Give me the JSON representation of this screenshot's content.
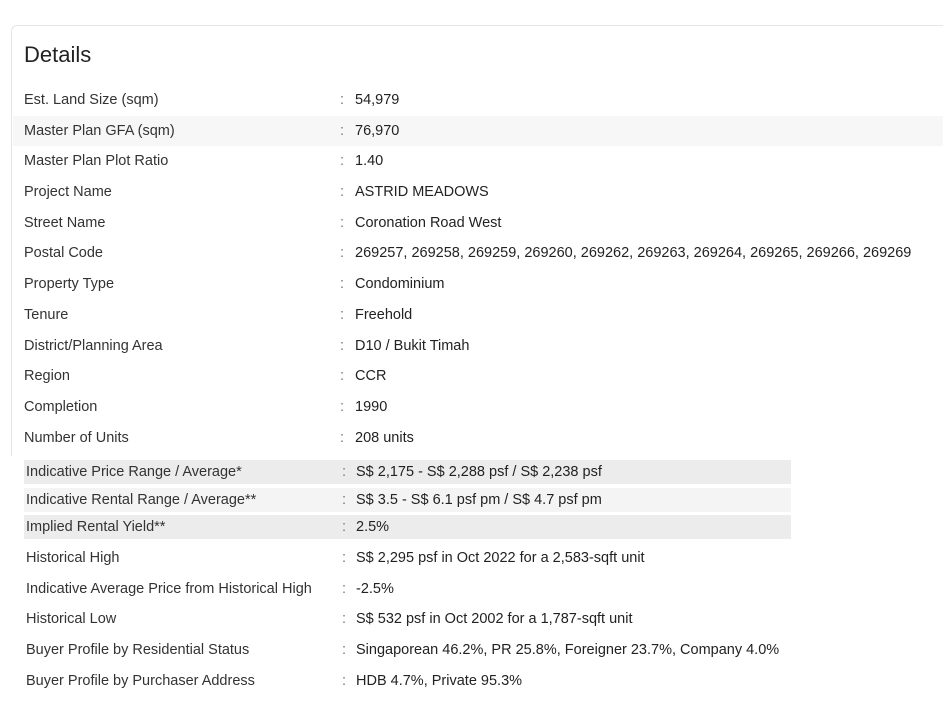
{
  "title": "Details",
  "details": [
    {
      "label": "Est. Land Size (sqm)",
      "value": "54,979"
    },
    {
      "label": "Master Plan GFA (sqm)",
      "value": "76,970"
    },
    {
      "label": "Master Plan Plot Ratio",
      "value": "1.40"
    },
    {
      "label": "Project Name",
      "value": "ASTRID MEADOWS"
    },
    {
      "label": "Street Name",
      "value": "Coronation Road West"
    },
    {
      "label": "Postal Code",
      "value": "269257, 269258, 269259, 269260, 269262, 269263, 269264, 269265, 269266, 269269"
    },
    {
      "label": "Property Type",
      "value": "Condominium"
    },
    {
      "label": "Tenure",
      "value": "Freehold"
    },
    {
      "label": "District/Planning Area",
      "value": "D10 / Bukit Timah"
    },
    {
      "label": "Region",
      "value": "CCR"
    },
    {
      "label": "Completion",
      "value": "1990"
    },
    {
      "label": "Number of Units",
      "value": "208 units"
    }
  ],
  "pricing": [
    {
      "label": "Indicative Price Range / Average*",
      "value": "S$ 2,175 - S$ 2,288 psf / S$ 2,238 psf"
    },
    {
      "label": "Indicative Rental Range / Average**",
      "value": "S$ 3.5 - S$ 6.1 psf pm / S$ 4.7 psf pm"
    },
    {
      "label": "Implied Rental Yield**",
      "value": "2.5%"
    },
    {
      "label": "Historical High",
      "value": "S$ 2,295 psf in Oct 2022 for a 2,583-sqft unit"
    },
    {
      "label": "Indicative Average Price from Historical High",
      "value": "-2.5%"
    },
    {
      "label": "Historical Low",
      "value": "S$ 532 psf in Oct 2002 for a 1,787-sqft unit"
    },
    {
      "label": "Buyer Profile by Residential Status",
      "value": "Singaporean 46.2%, PR 25.8%, Foreigner 23.7%, Company 4.0%"
    },
    {
      "label": "Buyer Profile by Purchaser Address",
      "value": "HDB 4.7%, Private 95.3%"
    }
  ],
  "separator": ":"
}
